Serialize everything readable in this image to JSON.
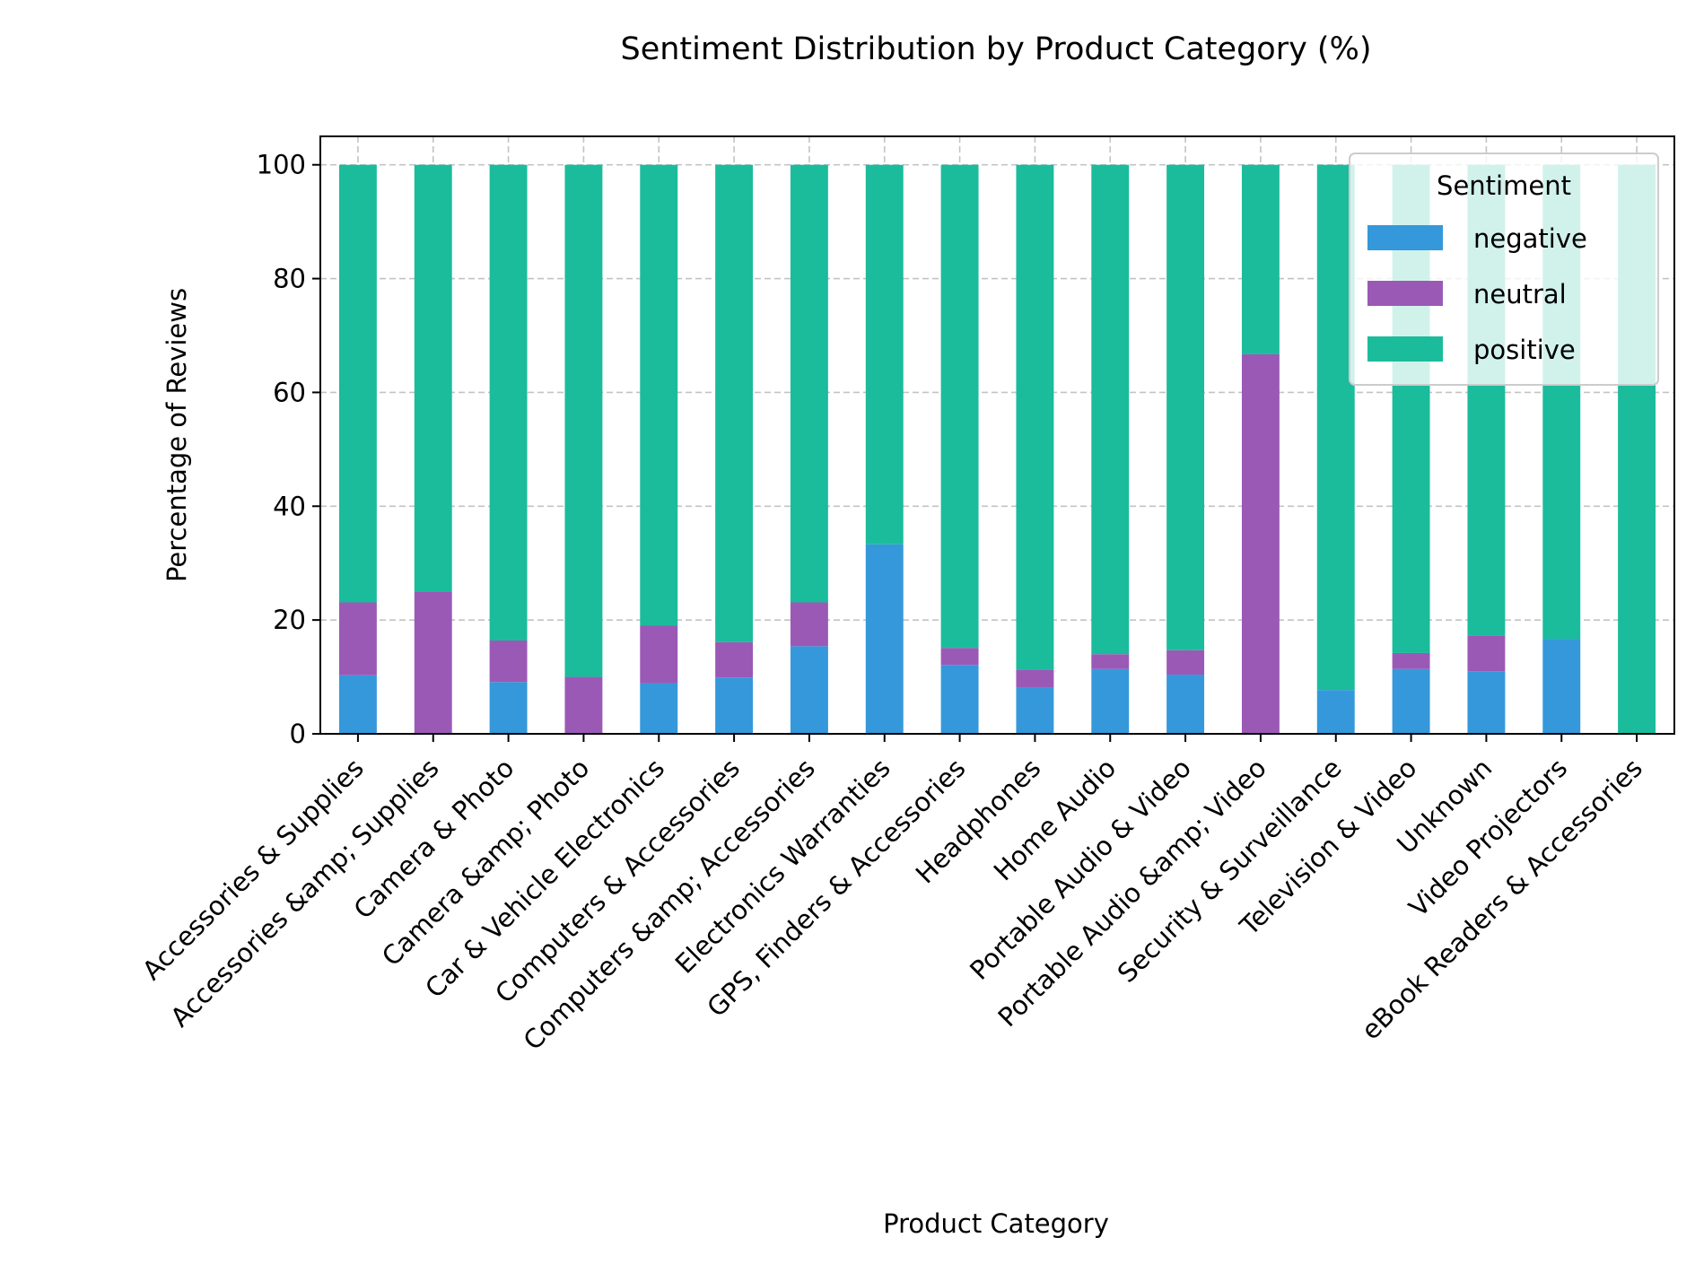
{
  "chart_data": {
    "type": "bar",
    "stacked": true,
    "title": "Sentiment Distribution by Product Category (%)",
    "xlabel": "Product Category",
    "ylabel": "Percentage of Reviews",
    "ylim": [
      0,
      105
    ],
    "yticks": [
      0,
      20,
      40,
      60,
      80,
      100
    ],
    "grid": true,
    "legend": {
      "title": "Sentiment",
      "position": "top-right"
    },
    "categories": [
      "Accessories & Supplies",
      "Accessories &amp; Supplies",
      "Camera & Photo",
      "Camera &amp; Photo",
      "Car & Vehicle Electronics",
      "Computers & Accessories",
      "Computers &amp; Accessories",
      "Electronics Warranties",
      "GPS, Finders & Accessories",
      "Headphones",
      "Home Audio",
      "Portable Audio & Video",
      "Portable Audio &amp; Video",
      "Security & Surveillance",
      "Television & Video",
      "Unknown",
      "Video Projectors",
      "eBook Readers & Accessories"
    ],
    "series": [
      {
        "name": "negative",
        "color": "#3498db",
        "values": [
          10.3,
          0,
          9.1,
          0,
          8.9,
          9.9,
          15.4,
          33.3,
          12.1,
          8.1,
          11.4,
          10.4,
          0,
          7.7,
          11.4,
          11.0,
          16.7,
          0
        ]
      },
      {
        "name": "neutral",
        "color": "#9b59b6",
        "values": [
          12.8,
          25.0,
          7.3,
          10.0,
          10.1,
          6.2,
          7.7,
          0,
          3.0,
          3.2,
          2.6,
          4.3,
          66.7,
          0,
          2.8,
          6.3,
          0,
          0
        ]
      },
      {
        "name": "positive",
        "color": "#1abc9c",
        "values": [
          76.9,
          75.0,
          83.6,
          90.0,
          81.0,
          83.9,
          76.9,
          66.7,
          84.9,
          88.7,
          86.0,
          85.3,
          33.3,
          92.3,
          85.8,
          82.7,
          83.3,
          100.0
        ]
      }
    ]
  }
}
